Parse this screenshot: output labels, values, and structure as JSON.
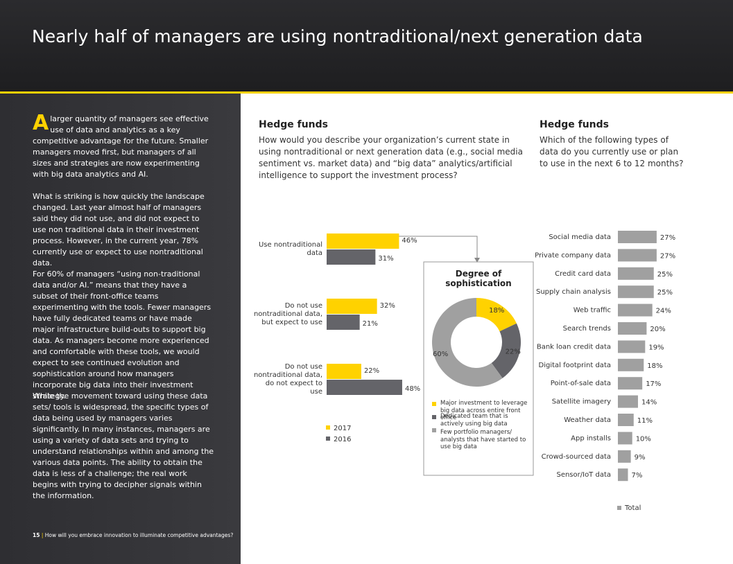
{
  "header": {
    "title": "Nearly half of managers are using nontraditional/next generation data"
  },
  "sidebar": {
    "drop_cap": "A",
    "paragraphs": [
      "larger quantity of managers see effective use of data and analytics as a key competitive advantage for the future. Smaller managers moved first, but managers of all sizes and strategies are now experimenting with big data analytics and AI.",
      "What is striking is how quickly the landscape changed. Last year almost half of managers said they did not use, and did not expect to use non traditional data in their investment process. However, in the current year, 78% currently use or expect to use nontraditional data.",
      "For 60% of managers “using non-traditional data and/or AI.” means that they have a subset of their front-office teams experimenting with the tools. Fewer managers have fully dedicated teams or have made major infrastructure build-outs to support big data. As managers become more experienced and comfortable with these tools, we would expect to see continued evolution and sophistication around how managers incorporate big data into their investment strategy.",
      "While the movement toward using these data sets/ tools is widespread, the specific types of data being used by managers varies significantly. In many instances, managers are using a variety of data sets and trying to understand relationships within and among the various data points. The ability to obtain the data is less of a challenge; the real work begins with trying to decipher signals within the information."
    ],
    "footer_page": "15",
    "footer_text": "How will you embrace innovation to illuminate competitive advantages?"
  },
  "chart_data": [
    {
      "type": "bar",
      "orientation": "horizontal",
      "heading": "Hedge funds",
      "title": "How would you describe your organization’s current state in using nontraditional or next generation data (e.g., social media sentiment vs. market data) and “big data” analytics/artificial intelligence to support the investment process?",
      "categories": [
        "Use nontraditional data",
        "Do not use nontraditional data, but expect to use",
        "Do not use nontraditional data, do not expect to use"
      ],
      "series": [
        {
          "name": "2017",
          "color": "#ffd200",
          "values": [
            46,
            32,
            22
          ],
          "value_labels": [
            "46%",
            "32%",
            "22%"
          ]
        },
        {
          "name": "2016",
          "color": "#646469",
          "values": [
            31,
            21,
            48
          ],
          "value_labels": [
            "31%",
            "21%",
            "48%"
          ]
        }
      ]
    },
    {
      "type": "pie",
      "donut": true,
      "title": "Degree of sophistication",
      "categories": [
        "Major investment to leverage big data across entire front office",
        "Dedicated team that is actively using big data",
        "Few portfolio managers/ analysts that have started to use big data"
      ],
      "values": [
        18,
        22,
        60
      ],
      "value_labels": [
        "18%",
        "22%",
        "60%"
      ],
      "colors": [
        "#ffd200",
        "#646469",
        "#a0a0a0"
      ]
    },
    {
      "type": "bar",
      "orientation": "horizontal",
      "heading": "Hedge funds",
      "title": "Which of the following types of data do you currently use or plan to use in the next 6 to 12 months?",
      "categories": [
        "Social media data",
        "Private company data",
        "Credit card data",
        "Supply chain analysis",
        "Web traffic",
        "Search trends",
        "Bank loan credit data",
        "Digital footprint data",
        "Point-of-sale data",
        "Satellite imagery",
        "Weather data",
        "App installs",
        "Crowd-sourced data",
        "Sensor/IoT data"
      ],
      "series": [
        {
          "name": "Total",
          "color": "#a0a0a0",
          "values": [
            27,
            27,
            25,
            25,
            24,
            20,
            19,
            18,
            17,
            14,
            11,
            10,
            9,
            7
          ],
          "value_labels": [
            "27%",
            "27%",
            "25%",
            "25%",
            "24%",
            "20%",
            "19%",
            "18%",
            "17%",
            "14%",
            "11%",
            "10%",
            "9%",
            "7%"
          ]
        }
      ]
    }
  ]
}
